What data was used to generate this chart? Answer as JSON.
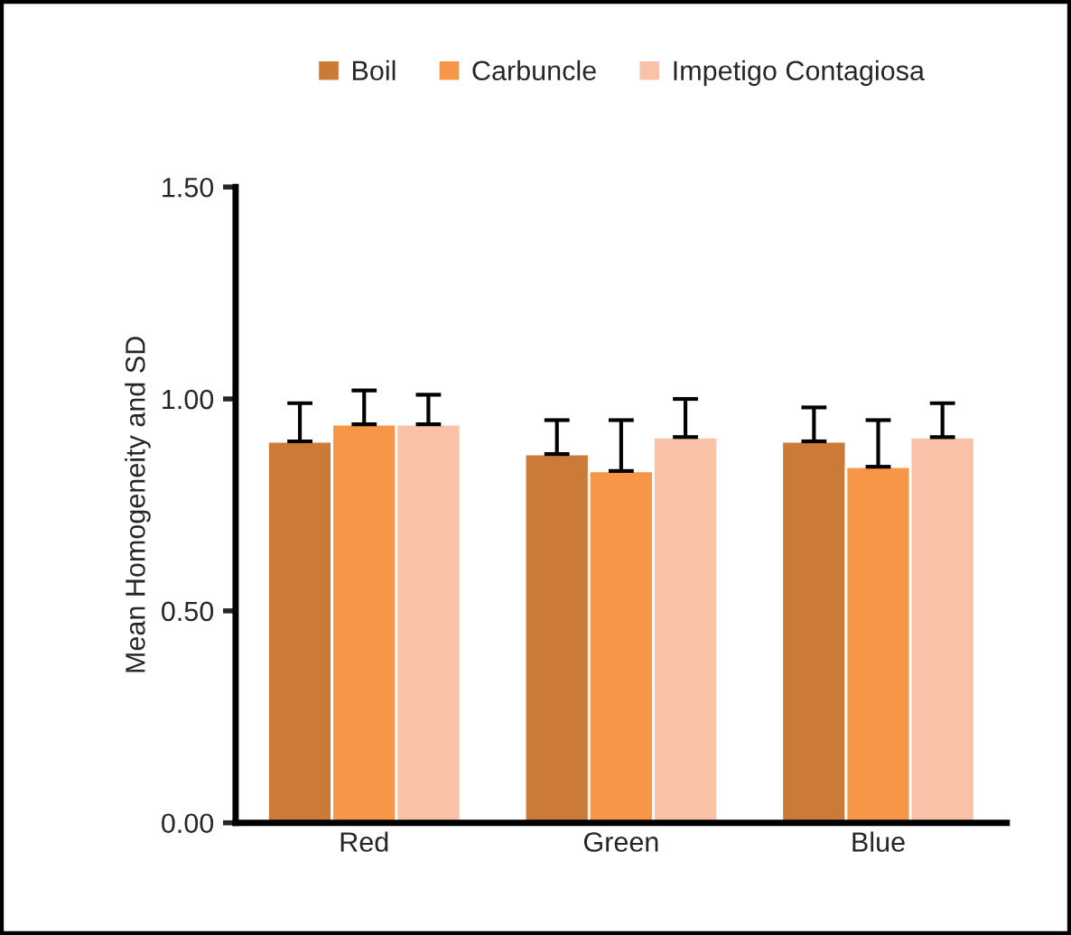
{
  "chart_data": {
    "type": "bar",
    "ylabel": "Mean Homogeneity and SD",
    "categories": [
      "Red",
      "Green",
      "Blue"
    ],
    "series": [
      {
        "name": "Boil",
        "color": "#cc7a38",
        "values": [
          0.9,
          0.87,
          0.9
        ],
        "errors": [
          [
            0.9,
            0.99
          ],
          [
            0.87,
            0.95
          ],
          [
            0.9,
            0.98
          ]
        ]
      },
      {
        "name": "Carbuncle",
        "color": "#f79646",
        "values": [
          0.94,
          0.83,
          0.84
        ],
        "errors": [
          [
            0.94,
            1.02
          ],
          [
            0.83,
            0.95
          ],
          [
            0.84,
            0.95
          ]
        ]
      },
      {
        "name": "Impetigo Contagiosa",
        "color": "#fac3a8",
        "values": [
          0.94,
          0.91,
          0.91
        ],
        "errors": [
          [
            0.94,
            1.01
          ],
          [
            0.91,
            1.0
          ],
          [
            0.91,
            0.99
          ]
        ]
      }
    ],
    "ylim": [
      0,
      1.5
    ],
    "yticks": [
      {
        "value": 0,
        "label": "0.00"
      },
      {
        "value": 0.5,
        "label": "0.50"
      },
      {
        "value": 1.0,
        "label": "1.00"
      },
      {
        "value": 1.5,
        "label": "1.50"
      }
    ],
    "grid": false,
    "legend": "top"
  }
}
